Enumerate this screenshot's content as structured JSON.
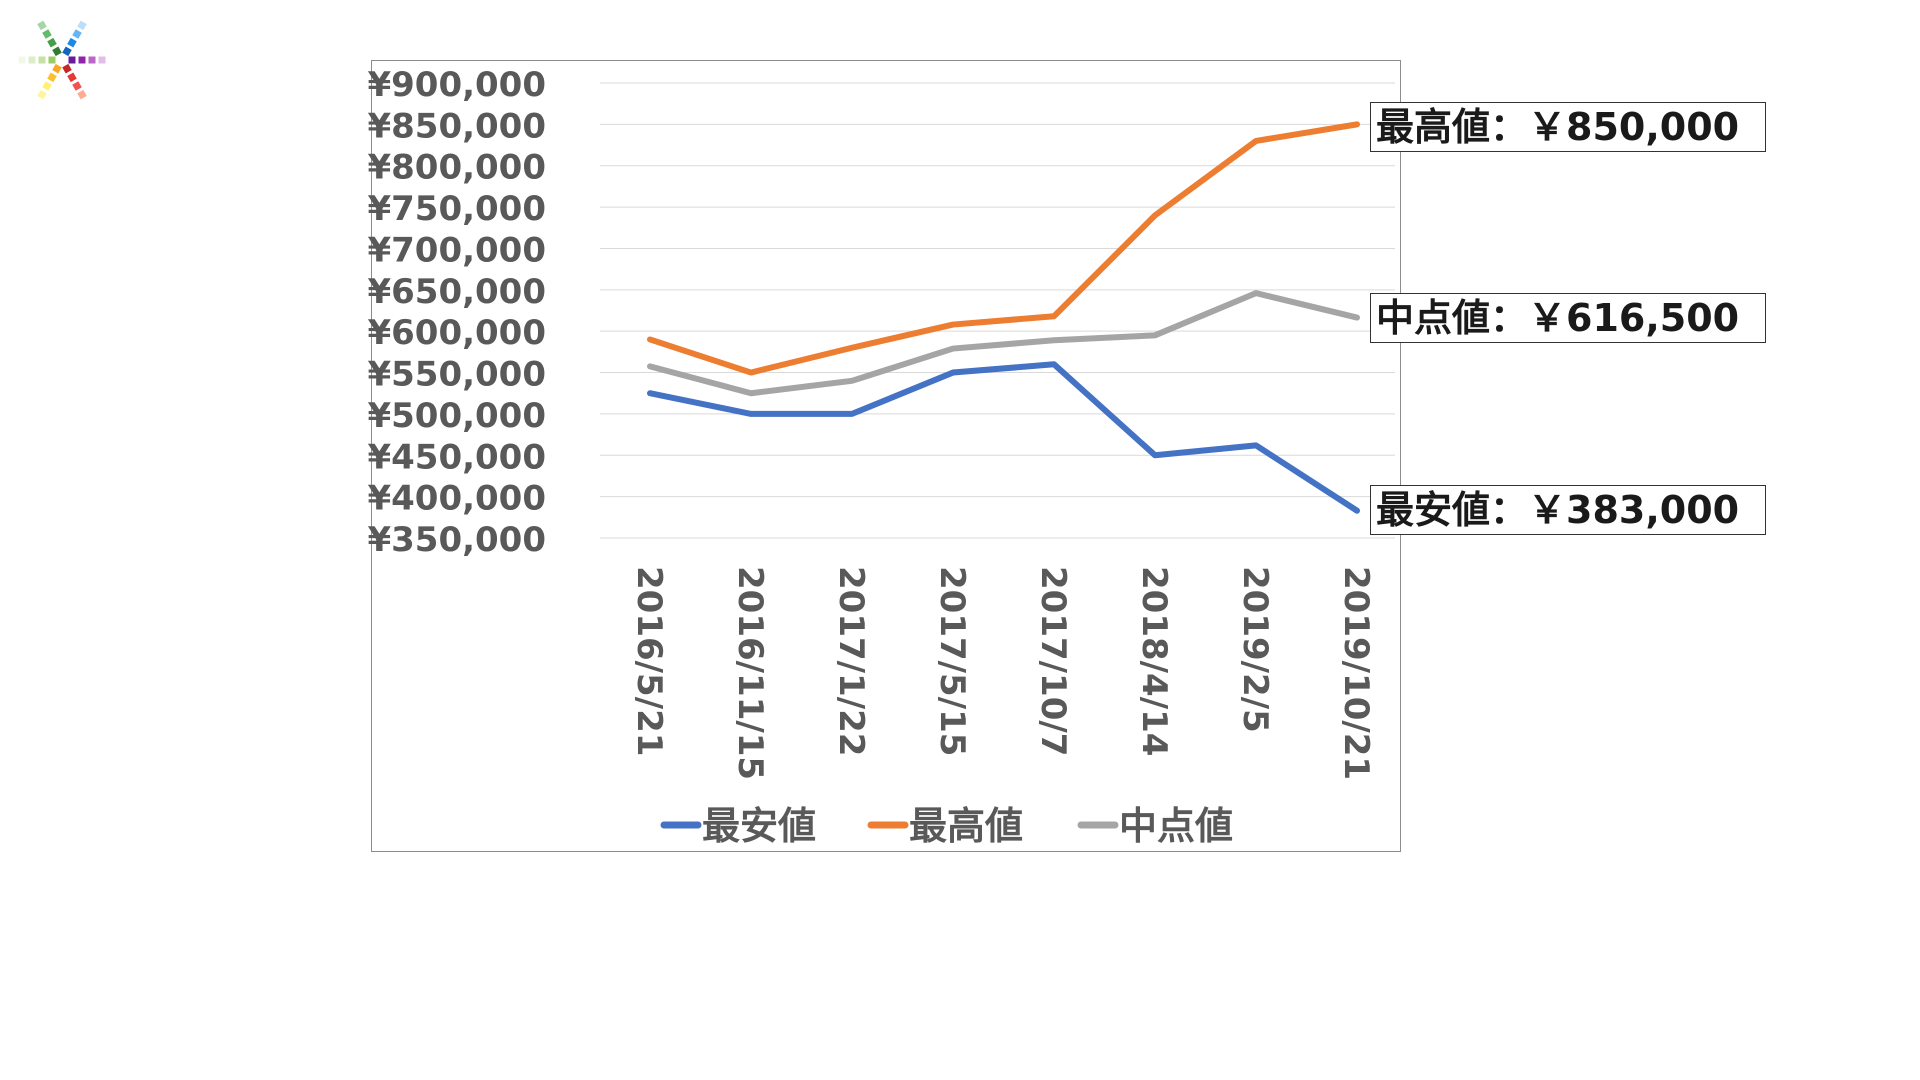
{
  "colors": {
    "series_low": "#4472c4",
    "series_high": "#ed7d31",
    "series_mid": "#a5a5a5",
    "axis_text": "#595959",
    "grid": "#d9d9d9"
  },
  "callouts": {
    "high": "最高値：￥850,000",
    "mid": "中点値：￥616,500",
    "low": "最安値：￥383,000"
  },
  "chart_data": {
    "type": "line",
    "categories": [
      "2016/5/21",
      "2016/11/15",
      "2017/1/22",
      "2017/5/15",
      "2017/10/7",
      "2018/4/14",
      "2019/2/5",
      "2019/10/21"
    ],
    "series": [
      {
        "name": "最安値",
        "values": [
          525000,
          500000,
          500000,
          550000,
          560000,
          450000,
          462000,
          383000
        ]
      },
      {
        "name": "最高値",
        "values": [
          590000,
          550000,
          580000,
          608000,
          618000,
          740000,
          830000,
          850000
        ]
      },
      {
        "name": "中点値",
        "values": [
          557500,
          525000,
          540000,
          579000,
          589000,
          595000,
          646000,
          616500
        ]
      }
    ],
    "title": "",
    "xlabel": "",
    "ylabel": "",
    "ylim": [
      350000,
      900000
    ],
    "ytick_step": 50000,
    "ytick_labels": [
      "¥350,000",
      "¥400,000",
      "¥450,000",
      "¥500,000",
      "¥550,000",
      "¥600,000",
      "¥650,000",
      "¥700,000",
      "¥750,000",
      "¥800,000",
      "¥850,000",
      "¥900,000"
    ],
    "grid": true,
    "legend": "bottom"
  }
}
